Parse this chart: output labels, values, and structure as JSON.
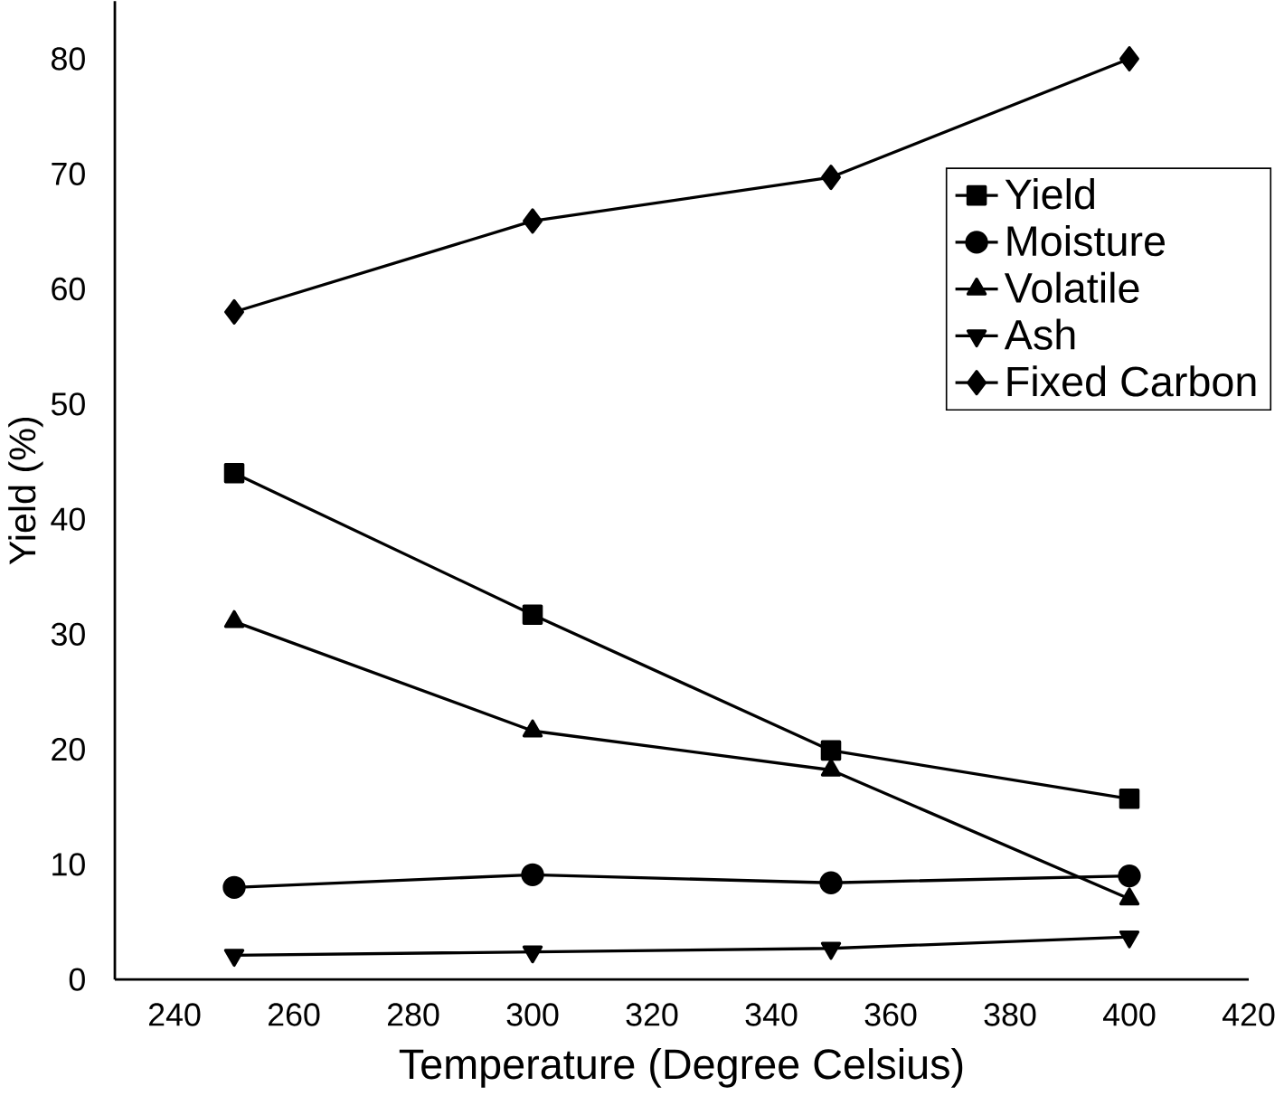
{
  "chart_data": {
    "type": "line",
    "xlabel": "Temperature (Degree Celsius)",
    "ylabel": "Yield (%)",
    "xlim": [
      230,
      420
    ],
    "xticks": [
      240,
      260,
      280,
      300,
      320,
      340,
      360,
      380,
      400,
      420
    ],
    "ylim": [
      0,
      85
    ],
    "yticks": [
      0,
      10,
      20,
      30,
      40,
      50,
      60,
      70,
      80
    ],
    "grid": false,
    "legend": "right",
    "line_style": "solid",
    "series": [
      {
        "name": "Yield",
        "color": "#000000",
        "marker": "square",
        "x": [
          250,
          300,
          350,
          400
        ],
        "values": [
          44.0,
          31.7,
          19.9,
          15.7
        ]
      },
      {
        "name": "Moisture",
        "color": "#000000",
        "marker": "circle",
        "x": [
          250,
          300,
          350,
          400
        ],
        "values": [
          8.0,
          9.1,
          8.4,
          9.0
        ]
      },
      {
        "name": "Volatile",
        "color": "#000000",
        "marker": "triangle",
        "x": [
          250,
          300,
          350,
          400
        ],
        "values": [
          31.1,
          21.6,
          18.2,
          7.0
        ]
      },
      {
        "name": "Ash",
        "color": "#000000",
        "marker": "triangle down",
        "x": [
          250,
          300,
          350,
          400
        ],
        "values": [
          2.1,
          2.4,
          2.7,
          3.7
        ]
      },
      {
        "name": "Fixed Carbon",
        "color": "#000000",
        "marker": "diamond",
        "x": [
          250,
          300,
          350,
          400
        ],
        "values": [
          58.0,
          65.9,
          69.7,
          80.0
        ]
      }
    ]
  }
}
